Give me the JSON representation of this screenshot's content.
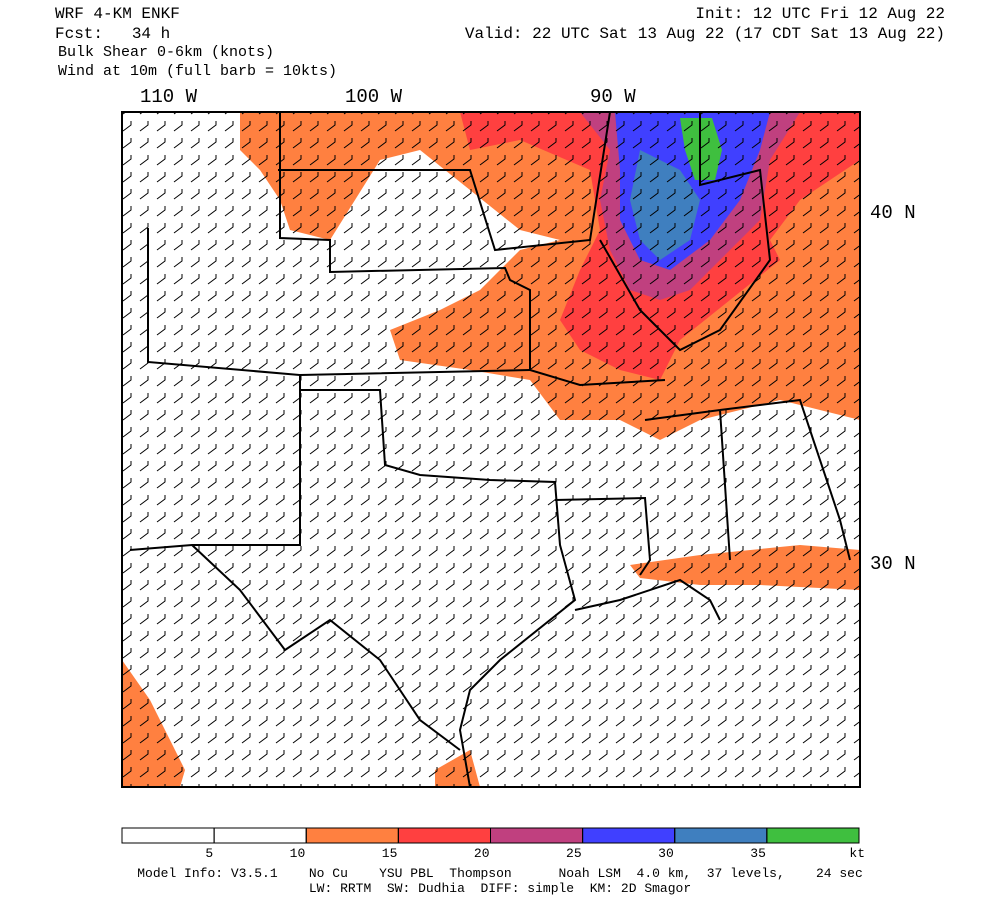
{
  "header": {
    "left": [
      "WRF 4-KM ENKF",
      "Fcst:   34 h",
      "Bulk Shear 0-6km (knots)",
      "Wind at 10m (full barb = 10kts)"
    ],
    "init": "Init: 12 UTC Fri 12 Aug 22",
    "valid": "Valid: 22 UTC Sat 13 Aug 22 (17 CDT Sat 13 Aug 22)"
  },
  "map": {
    "lon_labels": [
      "110 W",
      "100 W",
      "90 W"
    ],
    "lat_labels": [
      "40 N",
      "30 N"
    ]
  },
  "colorbar": {
    "bins": [
      0,
      5,
      10,
      15,
      20,
      25,
      30,
      35,
      40
    ],
    "colors": [
      "#ffffff",
      "#ffffff",
      "#ff8040",
      "#ff4040",
      "#c0407f",
      "#4040ff",
      "#3f7fbf",
      "#3fbf3f"
    ],
    "ticks": [
      5,
      10,
      15,
      20,
      25,
      30,
      35
    ],
    "unit": "kt"
  },
  "footer": [
    "Model Info: V3.5.1    No Cu    YSU PBL  Thompson      Noah LSM  4.0 km,  37 levels,    24 sec",
    "LW: RRTM  SW: Dudhia  DIFF: simple  KM: 2D Smagor"
  ]
}
